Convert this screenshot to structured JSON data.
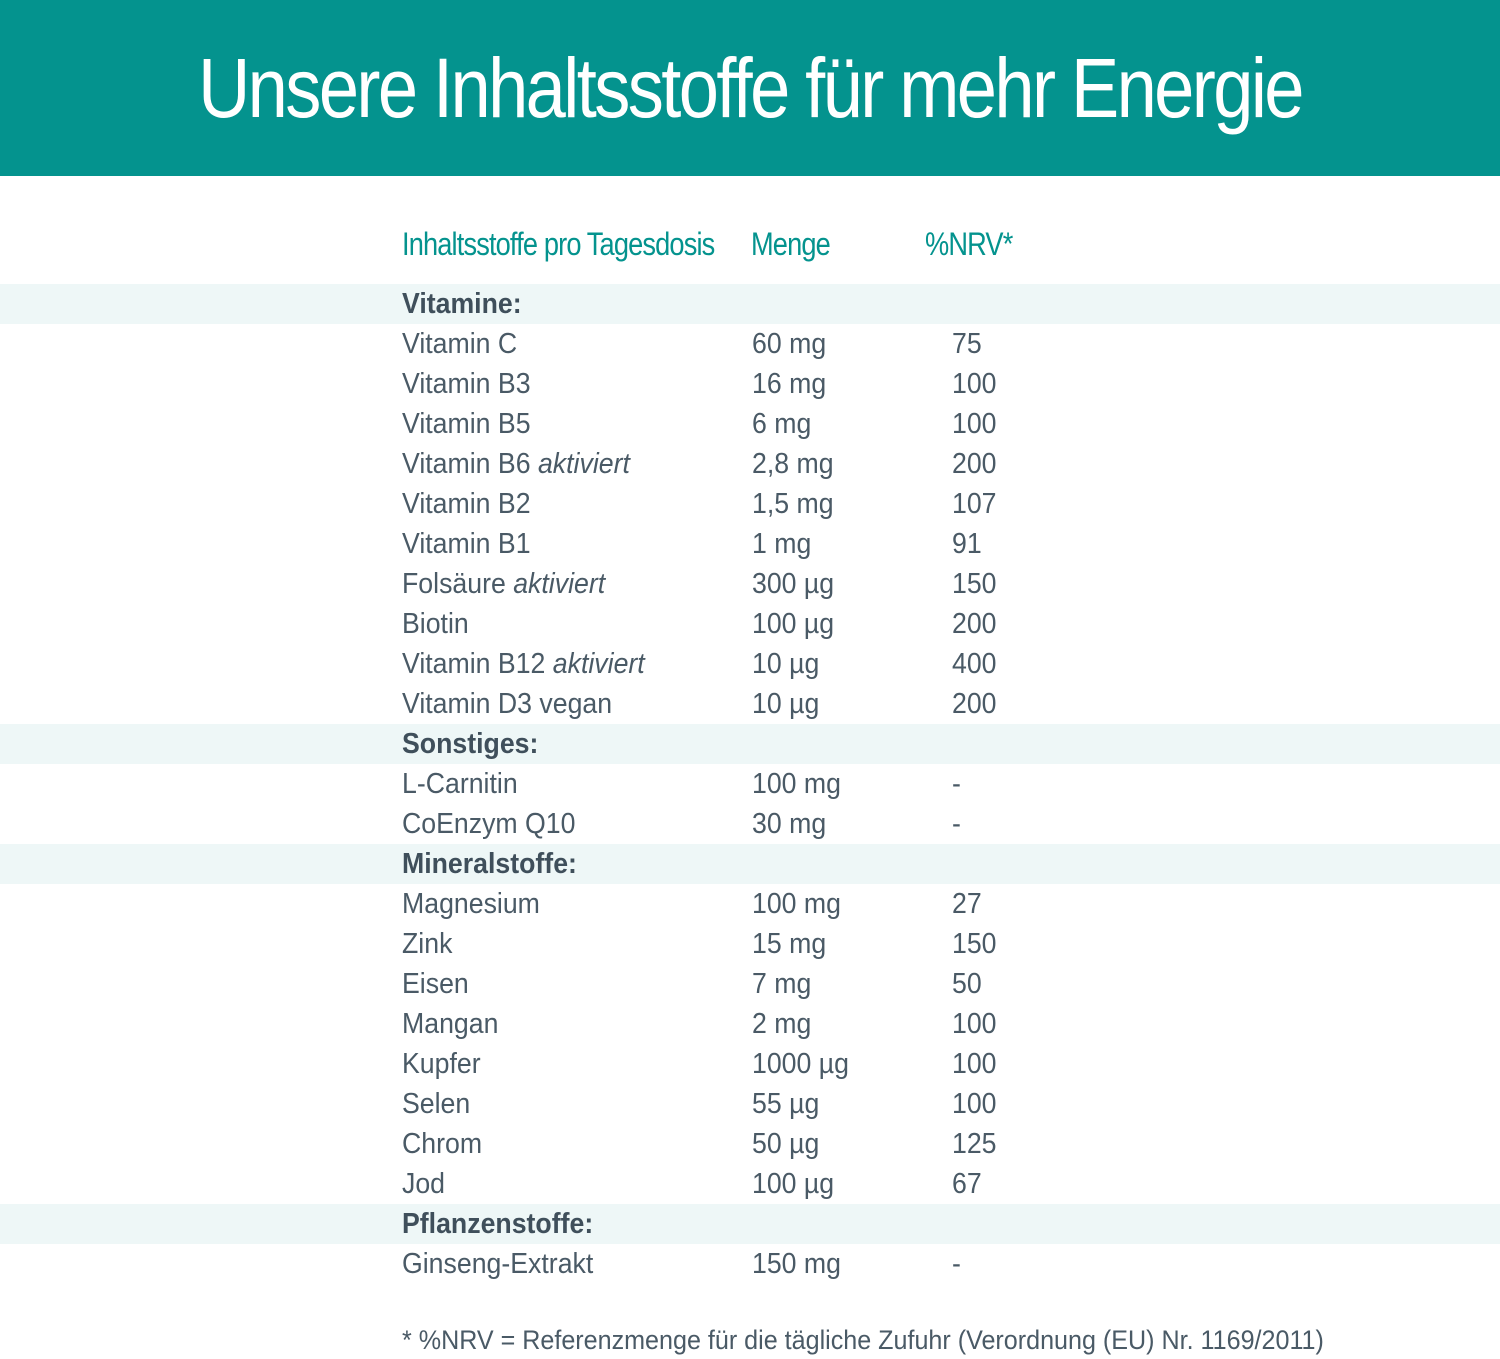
{
  "header": {
    "title": "Unsere Inhaltsstoffe für mehr Energie"
  },
  "columns": {
    "name": "Inhaltsstoffe pro Tagesdosis",
    "amount": "Menge",
    "nrv": "%NRV*"
  },
  "colors": {
    "banner": "#04938e",
    "accent_text": "#04938e",
    "section_row": "#eef7f7",
    "body_text": "#4a5a66"
  },
  "rows": [
    {
      "type": "section",
      "name": "Vitamine:"
    },
    {
      "type": "item",
      "name": "Vitamin C",
      "note": "",
      "amount": "60 mg",
      "nrv": "75"
    },
    {
      "type": "item",
      "name": "Vitamin B3",
      "note": "",
      "amount": "16 mg",
      "nrv": "100"
    },
    {
      "type": "item",
      "name": "Vitamin B5",
      "note": "",
      "amount": "6 mg",
      "nrv": "100"
    },
    {
      "type": "item",
      "name": "Vitamin B6",
      "note": "aktiviert",
      "amount": "2,8 mg",
      "nrv": "200"
    },
    {
      "type": "item",
      "name": "Vitamin B2",
      "note": "",
      "amount": "1,5 mg",
      "nrv": "107"
    },
    {
      "type": "item",
      "name": "Vitamin B1",
      "note": "",
      "amount": "1 mg",
      "nrv": "91"
    },
    {
      "type": "item",
      "name": "Folsäure",
      "note": "aktiviert",
      "amount": "300 µg",
      "nrv": "150"
    },
    {
      "type": "item",
      "name": "Biotin",
      "note": "",
      "amount": "100 µg",
      "nrv": "200"
    },
    {
      "type": "item",
      "name": "Vitamin B12",
      "note": "aktiviert",
      "amount": "10 µg",
      "nrv": "400"
    },
    {
      "type": "item",
      "name": "Vitamin D3 vegan",
      "note": "",
      "amount": "10 µg",
      "nrv": "200"
    },
    {
      "type": "section",
      "name": "Sonstiges:"
    },
    {
      "type": "item",
      "name": "L-Carnitin",
      "note": "",
      "amount": "100 mg",
      "nrv": "-"
    },
    {
      "type": "item",
      "name": "CoEnzym Q10",
      "note": "",
      "amount": "30 mg",
      "nrv": "-"
    },
    {
      "type": "section",
      "name": "Mineralstoffe:"
    },
    {
      "type": "item",
      "name": "Magnesium",
      "note": "",
      "amount": "100 mg",
      "nrv": "27"
    },
    {
      "type": "item",
      "name": "Zink",
      "note": "",
      "amount": "15 mg",
      "nrv": "150"
    },
    {
      "type": "item",
      "name": "Eisen",
      "note": "",
      "amount": "7 mg",
      "nrv": "50"
    },
    {
      "type": "item",
      "name": "Mangan",
      "note": "",
      "amount": "2 mg",
      "nrv": "100"
    },
    {
      "type": "item",
      "name": "Kupfer",
      "note": "",
      "amount": "1000 µg",
      "nrv": "100"
    },
    {
      "type": "item",
      "name": "Selen",
      "note": "",
      "amount": "55 µg",
      "nrv": "100"
    },
    {
      "type": "item",
      "name": "Chrom",
      "note": "",
      "amount": "50 µg",
      "nrv": "125"
    },
    {
      "type": "item",
      "name": "Jod",
      "note": "",
      "amount": "100 µg",
      "nrv": "67"
    },
    {
      "type": "section",
      "name": "Pflanzenstoffe:"
    },
    {
      "type": "item",
      "name": "Ginseng-Extrakt",
      "note": "",
      "amount": "150 mg",
      "nrv": "-"
    }
  ],
  "footnote": "* %NRV = Referenzmenge für die tägliche Zufuhr (Verordnung (EU) Nr. 1169/2011)"
}
